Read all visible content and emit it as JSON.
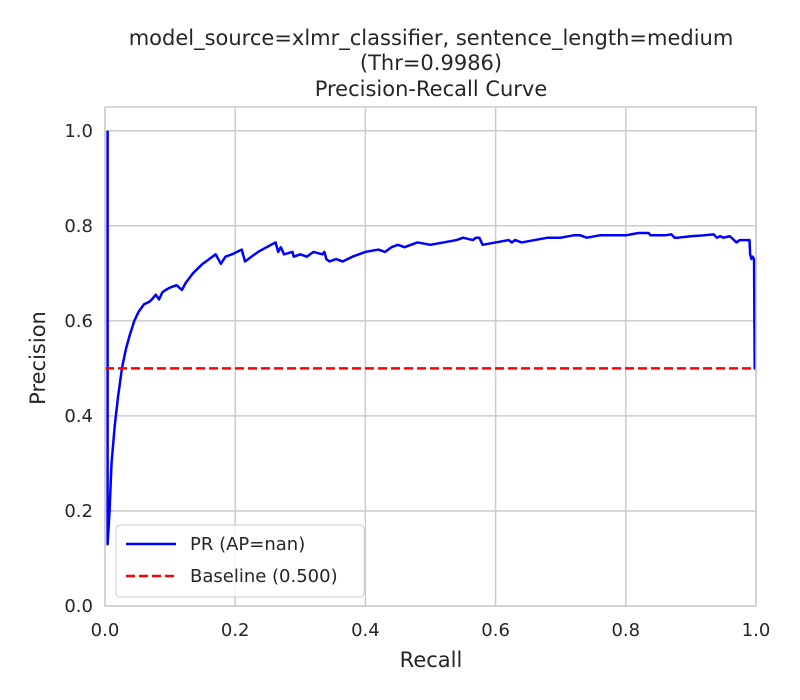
{
  "chart_data": {
    "type": "line",
    "title_lines": [
      "model_source=xlmr_classifier, sentence_length=medium",
      "(Thr=0.9986)",
      "Precision-Recall Curve"
    ],
    "xlabel": "Recall",
    "ylabel": "Precision",
    "xlim": [
      0.0,
      1.0
    ],
    "ylim": [
      0.0,
      1.05
    ],
    "x_ticks": [
      0.0,
      0.2,
      0.4,
      0.6,
      0.8,
      1.0
    ],
    "x_tick_labels": [
      "0.0",
      "0.2",
      "0.4",
      "0.6",
      "0.8",
      "1.0"
    ],
    "y_ticks": [
      0.0,
      0.2,
      0.4,
      0.6,
      0.8,
      1.0
    ],
    "y_tick_labels": [
      "0.0",
      "0.2",
      "0.4",
      "0.6",
      "0.8",
      "1.0"
    ],
    "grid": true,
    "legend_position": "lower-left",
    "series": [
      {
        "name": "PR (AP=nan)",
        "color": "#0000ff",
        "style": "solid",
        "x": [
          0.004,
          0.004,
          0.004,
          0.007,
          0.01,
          0.015,
          0.02,
          0.026,
          0.032,
          0.038,
          0.045,
          0.052,
          0.06,
          0.068,
          0.072,
          0.078,
          0.083,
          0.088,
          0.093,
          0.1,
          0.11,
          0.118,
          0.124,
          0.135,
          0.15,
          0.165,
          0.17,
          0.178,
          0.185,
          0.195,
          0.21,
          0.215,
          0.235,
          0.255,
          0.262,
          0.266,
          0.27,
          0.275,
          0.288,
          0.29,
          0.3,
          0.31,
          0.32,
          0.334,
          0.337,
          0.34,
          0.345,
          0.355,
          0.365,
          0.38,
          0.4,
          0.42,
          0.43,
          0.44,
          0.45,
          0.46,
          0.48,
          0.5,
          0.52,
          0.54,
          0.55,
          0.565,
          0.57,
          0.575,
          0.58,
          0.6,
          0.62,
          0.625,
          0.63,
          0.64,
          0.66,
          0.68,
          0.7,
          0.72,
          0.73,
          0.74,
          0.76,
          0.78,
          0.8,
          0.82,
          0.83,
          0.835,
          0.838,
          0.84,
          0.85,
          0.86,
          0.87,
          0.875,
          0.88,
          0.9,
          0.92,
          0.935,
          0.94,
          0.945,
          0.95,
          0.96,
          0.97,
          0.975,
          0.98,
          0.985,
          0.99,
          0.991,
          0.993,
          0.995,
          0.997,
          0.998,
          1.0
        ],
        "y": [
          1.0,
          0.5,
          0.13,
          0.2,
          0.3,
          0.38,
          0.44,
          0.5,
          0.54,
          0.57,
          0.6,
          0.62,
          0.635,
          0.64,
          0.645,
          0.655,
          0.645,
          0.66,
          0.665,
          0.67,
          0.675,
          0.665,
          0.68,
          0.7,
          0.72,
          0.735,
          0.74,
          0.72,
          0.735,
          0.74,
          0.75,
          0.725,
          0.745,
          0.76,
          0.765,
          0.745,
          0.755,
          0.74,
          0.745,
          0.735,
          0.74,
          0.735,
          0.745,
          0.74,
          0.745,
          0.73,
          0.725,
          0.73,
          0.725,
          0.735,
          0.745,
          0.75,
          0.745,
          0.755,
          0.76,
          0.755,
          0.765,
          0.76,
          0.765,
          0.77,
          0.775,
          0.77,
          0.775,
          0.775,
          0.76,
          0.765,
          0.77,
          0.765,
          0.77,
          0.765,
          0.77,
          0.775,
          0.775,
          0.78,
          0.78,
          0.775,
          0.78,
          0.78,
          0.78,
          0.785,
          0.785,
          0.785,
          0.78,
          0.78,
          0.78,
          0.78,
          0.782,
          0.775,
          0.775,
          0.778,
          0.78,
          0.782,
          0.775,
          0.778,
          0.775,
          0.778,
          0.765,
          0.77,
          0.77,
          0.77,
          0.77,
          0.74,
          0.73,
          0.735,
          0.73,
          0.5,
          0.5
        ]
      },
      {
        "name": "Baseline (0.500)",
        "color": "#ff0000",
        "style": "dashed",
        "x": [
          0.0,
          1.0
        ],
        "y": [
          0.5,
          0.5
        ]
      }
    ]
  }
}
